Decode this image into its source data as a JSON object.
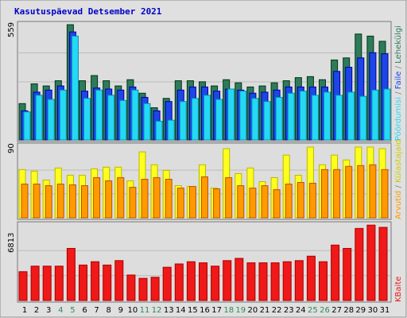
{
  "title": "Kasutuspäevad Detsember 2021",
  "colors": {
    "background": "#e0e0e0",
    "panel": "#dddddd",
    "grid": "#bbbbbb",
    "paginas": "#2e7b5a",
    "failid": "#1e46e6",
    "poordumised": "#26d8f5",
    "kulastajad": "#ffff1e",
    "arvutid": "#ff9a00",
    "kbaidid": "#f01818",
    "weekend_day": "#2e8b57",
    "weekday_day": "#000000",
    "title": "#0000c8"
  },
  "chart_data": [
    {
      "type": "bar",
      "panel": "top",
      "ymax_label": "559",
      "ylim": [
        0,
        559
      ],
      "categories": [
        "1",
        "2",
        "3",
        "4",
        "5",
        "6",
        "7",
        "8",
        "9",
        "10",
        "11",
        "12",
        "13",
        "14",
        "15",
        "16",
        "17",
        "18",
        "19",
        "20",
        "21",
        "22",
        "23",
        "24",
        "25",
        "26",
        "27",
        "28",
        "29",
        "30",
        "31"
      ],
      "weekend_days": [
        4,
        5,
        11,
        12,
        18,
        19,
        25,
        26
      ],
      "series": [
        {
          "name": "Lehekülgi",
          "color_key": "paginas",
          "values": [
            175,
            270,
            260,
            285,
            555,
            285,
            310,
            285,
            260,
            290,
            225,
            155,
            200,
            285,
            285,
            280,
            260,
            290,
            275,
            255,
            260,
            275,
            285,
            300,
            305,
            290,
            385,
            395,
            510,
            500,
            475
          ]
        },
        {
          "name": "Faile",
          "color_key": "failid",
          "values": [
            140,
            230,
            240,
            260,
            520,
            235,
            250,
            245,
            240,
            255,
            205,
            140,
            185,
            240,
            255,
            255,
            235,
            245,
            240,
            225,
            230,
            240,
            255,
            255,
            255,
            255,
            330,
            350,
            395,
            420,
            415
          ]
        },
        {
          "name": "Pöördumisi",
          "color_key": "poordumised",
          "values": [
            135,
            215,
            195,
            240,
            500,
            200,
            240,
            215,
            190,
            240,
            175,
            90,
            95,
            185,
            200,
            215,
            195,
            245,
            235,
            200,
            185,
            205,
            225,
            235,
            215,
            230,
            215,
            230,
            210,
            240,
            245
          ]
        }
      ],
      "legend_labels": [
        "Pöördumisi",
        "Faile",
        "Lehekülgi"
      ]
    },
    {
      "type": "bar",
      "panel": "middle",
      "ymax_label": "90",
      "ylim": [
        0,
        90
      ],
      "categories": [
        "1",
        "2",
        "3",
        "4",
        "5",
        "6",
        "7",
        "8",
        "9",
        "10",
        "11",
        "12",
        "13",
        "14",
        "15",
        "16",
        "17",
        "18",
        "19",
        "20",
        "21",
        "22",
        "23",
        "24",
        "25",
        "26",
        "27",
        "28",
        "29",
        "30",
        "31"
      ],
      "series": [
        {
          "name": "Külastajaid",
          "color_key": "kulastajad",
          "values": [
            60,
            58,
            47,
            62,
            53,
            53,
            61,
            63,
            63,
            46,
            82,
            66,
            59,
            40,
            39,
            66,
            37,
            86,
            55,
            62,
            45,
            50,
            78,
            53,
            88,
            66,
            78,
            72,
            88,
            88,
            86
          ]
        },
        {
          "name": "Arvutid",
          "color_key": "arvutid",
          "values": [
            42,
            42,
            40,
            42,
            41,
            40,
            50,
            46,
            50,
            38,
            48,
            50,
            48,
            37,
            39,
            51,
            36,
            50,
            40,
            37,
            40,
            35,
            42,
            44,
            43,
            60,
            60,
            64,
            65,
            66,
            60
          ]
        }
      ],
      "legend_labels": [
        "Arvutid",
        "Külastajaid"
      ]
    },
    {
      "type": "bar",
      "panel": "bottom",
      "ymax_label": "6813",
      "ylim": [
        0,
        6813
      ],
      "categories": [
        "1",
        "2",
        "3",
        "4",
        "5",
        "6",
        "7",
        "8",
        "9",
        "10",
        "11",
        "12",
        "13",
        "14",
        "15",
        "16",
        "17",
        "18",
        "19",
        "20",
        "21",
        "22",
        "23",
        "24",
        "25",
        "26",
        "27",
        "28",
        "29",
        "30",
        "31"
      ],
      "series": [
        {
          "name": "KBaite",
          "color_key": "kbaidid",
          "values": [
            2600,
            3100,
            3100,
            3100,
            4700,
            3200,
            3500,
            3200,
            3600,
            2300,
            2000,
            2100,
            3000,
            3300,
            3500,
            3400,
            3100,
            3600,
            3800,
            3400,
            3400,
            3400,
            3500,
            3600,
            4000,
            3500,
            5000,
            4700,
            6500,
            6800,
            6600
          ]
        }
      ],
      "legend_labels": [
        "KBaite"
      ]
    }
  ]
}
